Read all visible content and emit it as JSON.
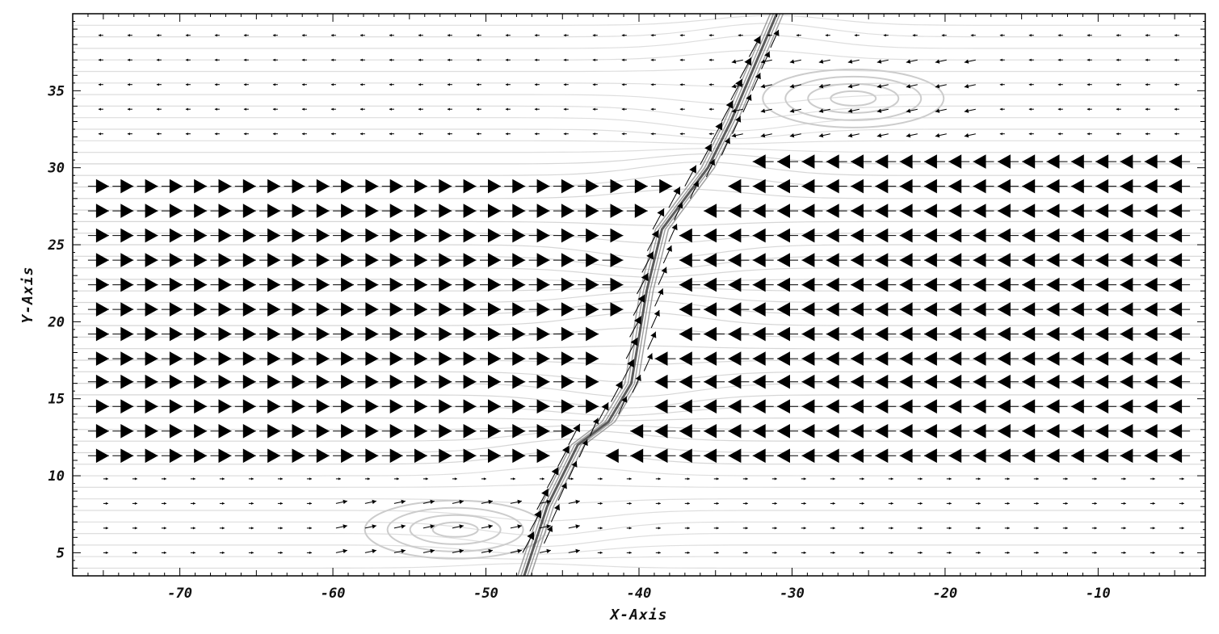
{
  "chart_data": {
    "type": "vector-field",
    "title": "",
    "xlabel": "X-Axis",
    "ylabel": "Y-Axis",
    "xlim": [
      -77,
      -3
    ],
    "ylim": [
      3.5,
      40
    ],
    "xticks": [
      -70,
      -60,
      -50,
      -40,
      -30,
      -20,
      -10
    ],
    "yticks": [
      5,
      10,
      15,
      20,
      25,
      30,
      35
    ],
    "xtick_labels": [
      "-70",
      "-60",
      "-50",
      "-40",
      "-30",
      "-20",
      "-10"
    ],
    "ytick_labels": [
      "5",
      "10",
      "15",
      "20",
      "25",
      "30",
      "35"
    ],
    "grid": false,
    "colors": {
      "background": "#ffffff",
      "arrow": "#000000",
      "streamline": "#c8c8c8",
      "shear_band": "#555555"
    },
    "shear_interface": {
      "description_free": true,
      "points": [
        [
          -47.5,
          3.5
        ],
        [
          -46,
          8
        ],
        [
          -44,
          12
        ],
        [
          -42,
          13.5
        ],
        [
          -40.5,
          16
        ],
        [
          -40,
          19
        ],
        [
          -39.5,
          22
        ],
        [
          -38.5,
          26
        ],
        [
          -37,
          28
        ],
        [
          -35.5,
          30
        ],
        [
          -34,
          33
        ],
        [
          -31,
          40
        ]
      ]
    },
    "left_flow": {
      "direction": "+x",
      "y_rows": [
        11.3,
        12.9,
        14.5,
        16.1,
        17.6,
        19.2,
        20.8,
        22.4,
        24.0,
        25.6,
        27.2,
        28.8
      ],
      "x_start": -76,
      "x_step": 1.6
    },
    "right_flow": {
      "direction": "-x",
      "y_rows": [
        11.3,
        12.9,
        14.5,
        16.1,
        17.6,
        19.2,
        20.8,
        22.4,
        24.0,
        25.6,
        27.2,
        28.8,
        30.4
      ],
      "x_end": -4,
      "x_step": 1.6
    },
    "vortices": [
      {
        "x": -52,
        "y": 6.5,
        "sense": "counter-clockwise"
      },
      {
        "x": -26,
        "y": 34.5,
        "sense": "counter-clockwise"
      }
    ]
  }
}
